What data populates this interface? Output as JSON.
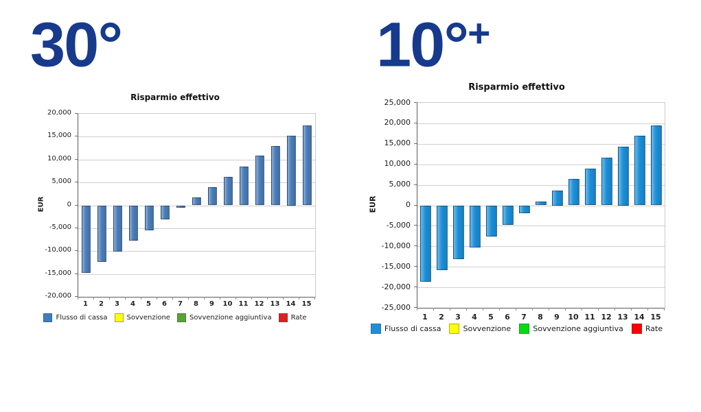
{
  "panels": [
    {
      "big_label": "30°",
      "big_label_sup": ""
    },
    {
      "big_label": "10°",
      "big_label_sup": "+"
    }
  ],
  "chart_data": [
    {
      "type": "bar",
      "title": "Risparmio effettivo",
      "ylabel": "EUR",
      "xlabel": "",
      "categories": [
        "1",
        "2",
        "3",
        "4",
        "5",
        "6",
        "7",
        "8",
        "9",
        "10",
        "11",
        "12",
        "13",
        "14",
        "15"
      ],
      "series": [
        {
          "name": "Flusso di cassa",
          "values": [
            -14800,
            -12400,
            -10100,
            -7700,
            -5400,
            -3000,
            -500,
            1700,
            4000,
            6200,
            8500,
            10800,
            13000,
            15200,
            17500
          ]
        }
      ],
      "ylim": [
        -20000,
        20000
      ],
      "ytick_step": 5000,
      "grid": true,
      "legend_position": "bottom",
      "bar_color": "#4a7ebb",
      "legend_entries": [
        {
          "label": "Flusso di cassa",
          "color": "#3c7ec0"
        },
        {
          "label": "Sovvenzione",
          "color": "#ffff00"
        },
        {
          "label": "Sovvenzione aggiuntiva",
          "color": "#55a630"
        },
        {
          "label": "Rate",
          "color": "#dd2020"
        }
      ]
    },
    {
      "type": "bar",
      "title": "Risparmio effettivo",
      "ylabel": "EUR",
      "xlabel": "",
      "categories": [
        "1",
        "2",
        "3",
        "4",
        "5",
        "6",
        "7",
        "8",
        "9",
        "10",
        "11",
        "12",
        "13",
        "14",
        "15"
      ],
      "series": [
        {
          "name": "Flusso di cassa",
          "values": [
            -18700,
            -15800,
            -13100,
            -10300,
            -7600,
            -4700,
            -1900,
            900,
            3600,
            6400,
            8900,
            11600,
            14300,
            17000,
            19500
          ]
        }
      ],
      "ylim": [
        -25000,
        25000
      ],
      "ytick_step": 5000,
      "grid": true,
      "legend_position": "bottom",
      "bar_color": "#1b90da",
      "legend_entries": [
        {
          "label": "Flusso di cassa",
          "color": "#1b90da"
        },
        {
          "label": "Sovvenzione",
          "color": "#ffff00"
        },
        {
          "label": "Sovvenzione aggiuntiva",
          "color": "#00dd11"
        },
        {
          "label": "Rate",
          "color": "#ff0000"
        }
      ]
    }
  ]
}
